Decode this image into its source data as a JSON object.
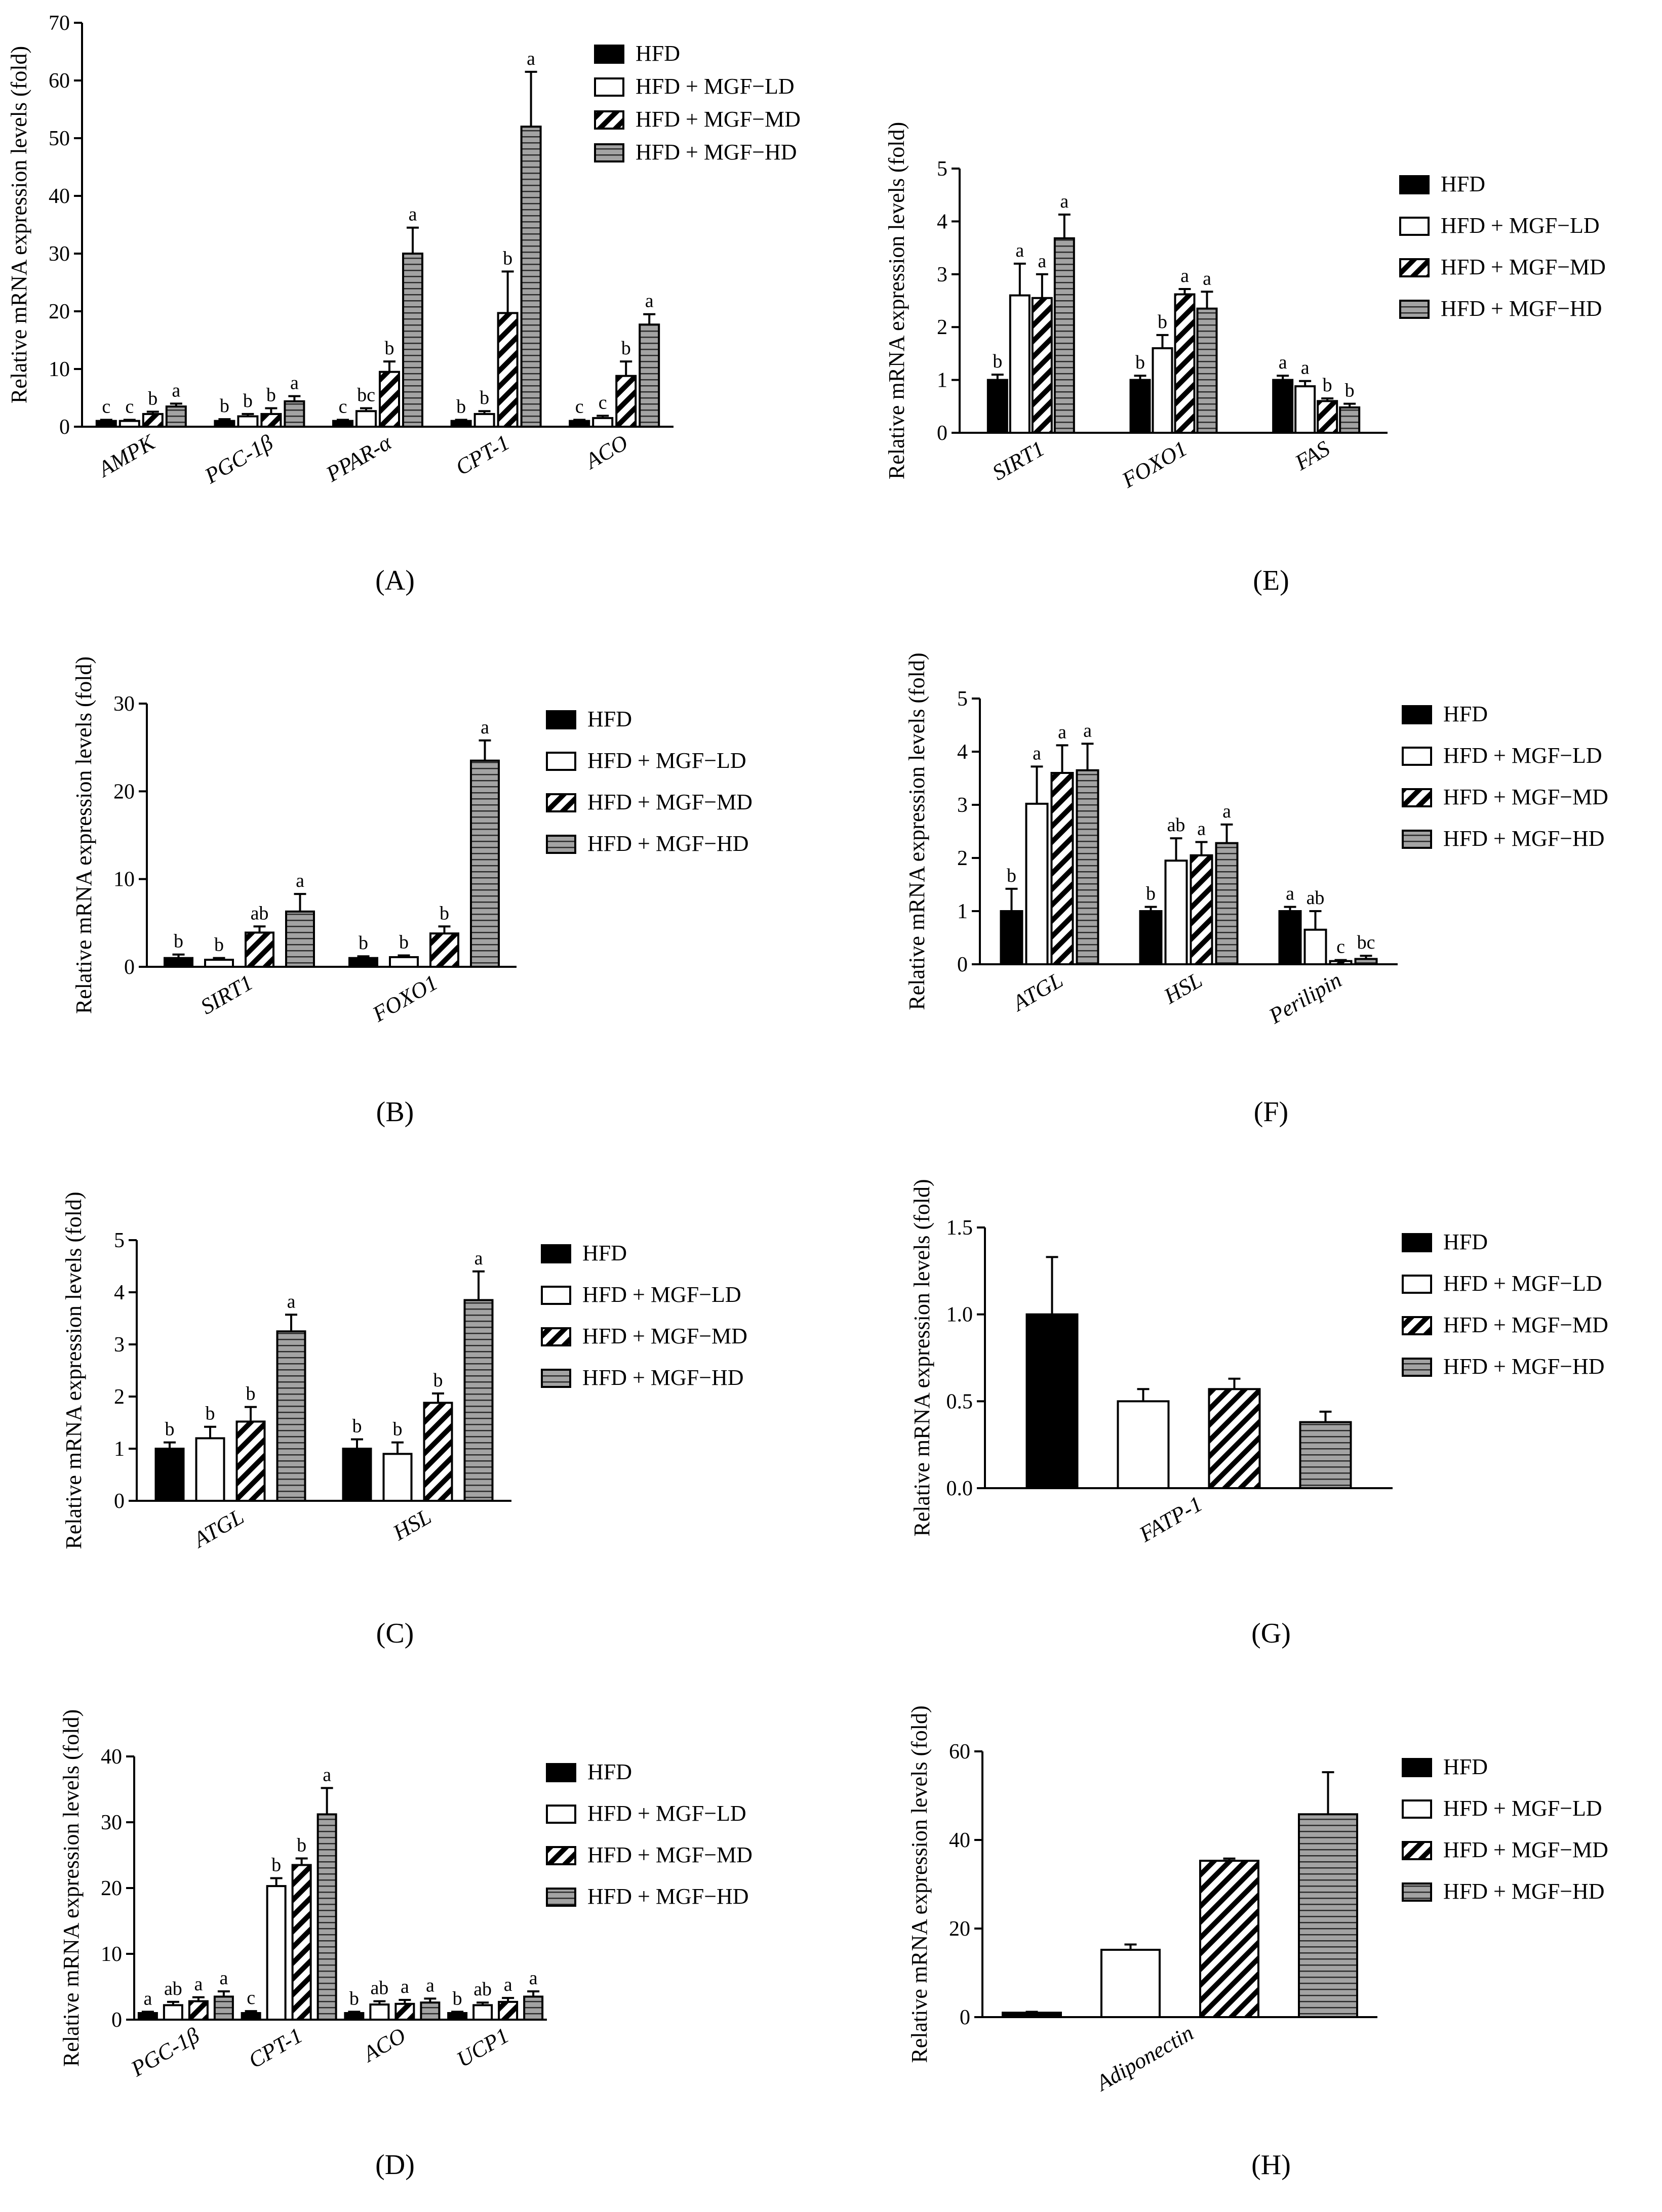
{
  "legend": {
    "labels": [
      "HFD",
      "HFD + MGF−LD",
      "HFD + MGF−MD",
      "HFD + MGF−HD"
    ]
  },
  "chart_data": [
    {
      "panel": "(A)",
      "type": "bar",
      "ylabel": "Relative mRNA expression levels (fold)",
      "ylim": [
        0,
        70
      ],
      "yticks": [
        0,
        10,
        20,
        30,
        40,
        50,
        60,
        70
      ],
      "categories": [
        "AMPK",
        "PGC-1β",
        "PPAR-α",
        "CPT-1",
        "ACO"
      ],
      "series": [
        {
          "name": "HFD",
          "values": [
            1,
            1,
            1,
            1,
            1
          ],
          "errors": [
            0.2,
            0.3,
            0.2,
            0.2,
            0.2
          ],
          "labels": [
            "c",
            "b",
            "c",
            "b",
            "c"
          ]
        },
        {
          "name": "HFD + MGF−LD",
          "values": [
            1,
            1.8,
            2.7,
            2.2,
            1.5
          ],
          "errors": [
            0.2,
            0.4,
            0.5,
            0.5,
            0.4
          ],
          "labels": [
            "c",
            "b",
            "bc",
            "b",
            "c"
          ]
        },
        {
          "name": "HFD + MGF−MD",
          "values": [
            2.2,
            2.2,
            9.5,
            19.7,
            8.8
          ],
          "errors": [
            0.4,
            1.0,
            1.8,
            7.2,
            2.5
          ],
          "labels": [
            "b",
            "b",
            "b",
            "b",
            "b"
          ]
        },
        {
          "name": "HFD + MGF−HD",
          "values": [
            3.5,
            4.4,
            30,
            52,
            17.7
          ],
          "errors": [
            0.5,
            0.9,
            4.5,
            9.5,
            1.8
          ],
          "labels": [
            "a",
            "a",
            "a",
            "a",
            "a"
          ]
        }
      ]
    },
    {
      "panel": "(E)",
      "type": "bar",
      "ylabel": "Relative mRNA expression levels (fold)",
      "ylim": [
        0,
        5
      ],
      "yticks": [
        0,
        1,
        2,
        3,
        4,
        5
      ],
      "categories": [
        "SIRT1",
        "FOXO1",
        "FAS"
      ],
      "series": [
        {
          "name": "HFD",
          "values": [
            1,
            1,
            1
          ],
          "errors": [
            0.1,
            0.08,
            0.08
          ],
          "labels": [
            "b",
            "b",
            "a"
          ]
        },
        {
          "name": "HFD + MGF−LD",
          "values": [
            2.6,
            1.6,
            0.88
          ],
          "errors": [
            0.6,
            0.25,
            0.1
          ],
          "labels": [
            "a",
            "b",
            "a"
          ]
        },
        {
          "name": "HFD + MGF−MD",
          "values": [
            2.55,
            2.62,
            0.6
          ],
          "errors": [
            0.45,
            0.1,
            0.05
          ],
          "labels": [
            "a",
            "a",
            "b"
          ]
        },
        {
          "name": "HFD + MGF−HD",
          "values": [
            3.68,
            2.35,
            0.48
          ],
          "errors": [
            0.45,
            0.32,
            0.07
          ],
          "labels": [
            "a",
            "a",
            "b"
          ]
        }
      ]
    },
    {
      "panel": "(B)",
      "type": "bar",
      "ylabel": "Relative mRNA expression levels (fold)",
      "ylim": [
        0,
        30
      ],
      "yticks": [
        0,
        10,
        20,
        30
      ],
      "categories": [
        "SIRT1",
        "FOXO1"
      ],
      "series": [
        {
          "name": "HFD",
          "values": [
            1,
            1
          ],
          "errors": [
            0.4,
            0.2
          ],
          "labels": [
            "b",
            "b"
          ]
        },
        {
          "name": "HFD + MGF−LD",
          "values": [
            0.8,
            1.1
          ],
          "errors": [
            0.2,
            0.2
          ],
          "labels": [
            "b",
            "b"
          ]
        },
        {
          "name": "HFD + MGF−MD",
          "values": [
            3.9,
            3.8
          ],
          "errors": [
            0.7,
            0.8
          ],
          "labels": [
            "ab",
            "b"
          ]
        },
        {
          "name": "HFD + MGF−HD",
          "values": [
            6.3,
            23.5
          ],
          "errors": [
            2.0,
            2.3
          ],
          "labels": [
            "a",
            "a"
          ]
        }
      ]
    },
    {
      "panel": "(F)",
      "type": "bar",
      "ylabel": "Relative mRNA expression levels (fold)",
      "ylim": [
        0,
        5
      ],
      "yticks": [
        0,
        1,
        2,
        3,
        4,
        5
      ],
      "categories": [
        "ATGL",
        "HSL",
        "Perilipin"
      ],
      "series": [
        {
          "name": "HFD",
          "values": [
            1,
            1,
            1
          ],
          "errors": [
            0.42,
            0.08,
            0.08
          ],
          "labels": [
            "b",
            "b",
            "a"
          ]
        },
        {
          "name": "HFD + MGF−LD",
          "values": [
            3.02,
            1.95,
            0.65
          ],
          "errors": [
            0.7,
            0.42,
            0.35
          ],
          "labels": [
            "a",
            "ab",
            "ab"
          ]
        },
        {
          "name": "HFD + MGF−MD",
          "values": [
            3.6,
            2.05,
            0.06
          ],
          "errors": [
            0.52,
            0.25,
            0.02
          ],
          "labels": [
            "a",
            "a",
            "c"
          ]
        },
        {
          "name": "HFD + MGF−HD",
          "values": [
            3.65,
            2.28,
            0.1
          ],
          "errors": [
            0.5,
            0.35,
            0.06
          ],
          "labels": [
            "a",
            "a",
            "bc"
          ]
        }
      ]
    },
    {
      "panel": "(C)",
      "type": "bar",
      "ylabel": "Relative mRNA expression levels (fold)",
      "ylim": [
        0,
        5
      ],
      "yticks": [
        0,
        1,
        2,
        3,
        4,
        5
      ],
      "categories": [
        "ATGL",
        "HSL"
      ],
      "series": [
        {
          "name": "HFD",
          "values": [
            1,
            1
          ],
          "errors": [
            0.12,
            0.18
          ],
          "labels": [
            "b",
            "b"
          ]
        },
        {
          "name": "HFD + MGF−LD",
          "values": [
            1.2,
            0.9
          ],
          "errors": [
            0.22,
            0.22
          ],
          "labels": [
            "b",
            "b"
          ]
        },
        {
          "name": "HFD + MGF−MD",
          "values": [
            1.52,
            1.88
          ],
          "errors": [
            0.28,
            0.18
          ],
          "labels": [
            "b",
            "b"
          ]
        },
        {
          "name": "HFD + MGF−HD",
          "values": [
            3.25,
            3.85
          ],
          "errors": [
            0.32,
            0.55
          ],
          "labels": [
            "a",
            "a"
          ]
        }
      ]
    },
    {
      "panel": "(G)",
      "type": "bar",
      "ylabel": "Relative mRNA expression levels (fold)",
      "ylim": [
        0,
        1.5
      ],
      "yticks": [
        0.0,
        0.5,
        1.0,
        1.5
      ],
      "tick_decimals": 1,
      "categories": [
        "FATP-1"
      ],
      "series": [
        {
          "name": "HFD",
          "values": [
            1.0
          ],
          "errors": [
            0.33
          ],
          "labels": [
            ""
          ]
        },
        {
          "name": "HFD + MGF−LD",
          "values": [
            0.5
          ],
          "errors": [
            0.07
          ],
          "labels": [
            ""
          ]
        },
        {
          "name": "HFD + MGF−MD",
          "values": [
            0.57
          ],
          "errors": [
            0.06
          ],
          "labels": [
            ""
          ]
        },
        {
          "name": "HFD + MGF−HD",
          "values": [
            0.38
          ],
          "errors": [
            0.06
          ],
          "labels": [
            ""
          ]
        }
      ]
    },
    {
      "panel": "(D)",
      "type": "bar",
      "ylabel": "Relative mRNA expression levels (fold)",
      "ylim": [
        0,
        40
      ],
      "yticks": [
        0,
        10,
        20,
        30,
        40
      ],
      "categories": [
        "PGC-1β",
        "CPT-1",
        "ACO",
        "UCP1"
      ],
      "series": [
        {
          "name": "HFD",
          "values": [
            1,
            1,
            1,
            1
          ],
          "errors": [
            0.2,
            0.3,
            0.2,
            0.2
          ],
          "labels": [
            "a",
            "c",
            "b",
            "b"
          ]
        },
        {
          "name": "HFD + MGF−LD",
          "values": [
            2.2,
            20.3,
            2.3,
            2.2
          ],
          "errors": [
            0.5,
            1.2,
            0.5,
            0.4
          ],
          "labels": [
            "ab",
            "b",
            "ab",
            "ab"
          ]
        },
        {
          "name": "HFD + MGF−MD",
          "values": [
            2.8,
            23.5,
            2.4,
            2.7
          ],
          "errors": [
            0.6,
            1.0,
            0.6,
            0.6
          ],
          "labels": [
            "a",
            "b",
            "a",
            "a"
          ]
        },
        {
          "name": "HFD + MGF−HD",
          "values": [
            3.5,
            31.2,
            2.6,
            3.5
          ],
          "errors": [
            0.8,
            4.0,
            0.6,
            0.8
          ],
          "labels": [
            "a",
            "a",
            "a",
            "a"
          ]
        }
      ]
    },
    {
      "panel": "(H)",
      "type": "bar",
      "ylabel": "Relative mRNA expression levels (fold)",
      "ylim": [
        0,
        60
      ],
      "yticks": [
        0,
        20,
        40,
        60
      ],
      "categories": [
        "Adiponectin"
      ],
      "series": [
        {
          "name": "HFD",
          "values": [
            1
          ],
          "errors": [
            0.2
          ],
          "labels": [
            ""
          ]
        },
        {
          "name": "HFD + MGF−LD",
          "values": [
            15.2
          ],
          "errors": [
            1.2
          ],
          "labels": [
            ""
          ]
        },
        {
          "name": "HFD + MGF−MD",
          "values": [
            35.3
          ],
          "errors": [
            0.5
          ],
          "labels": [
            ""
          ]
        },
        {
          "name": "HFD + MGF−HD",
          "values": [
            45.8
          ],
          "errors": [
            9.5
          ],
          "labels": [
            ""
          ]
        }
      ]
    }
  ]
}
